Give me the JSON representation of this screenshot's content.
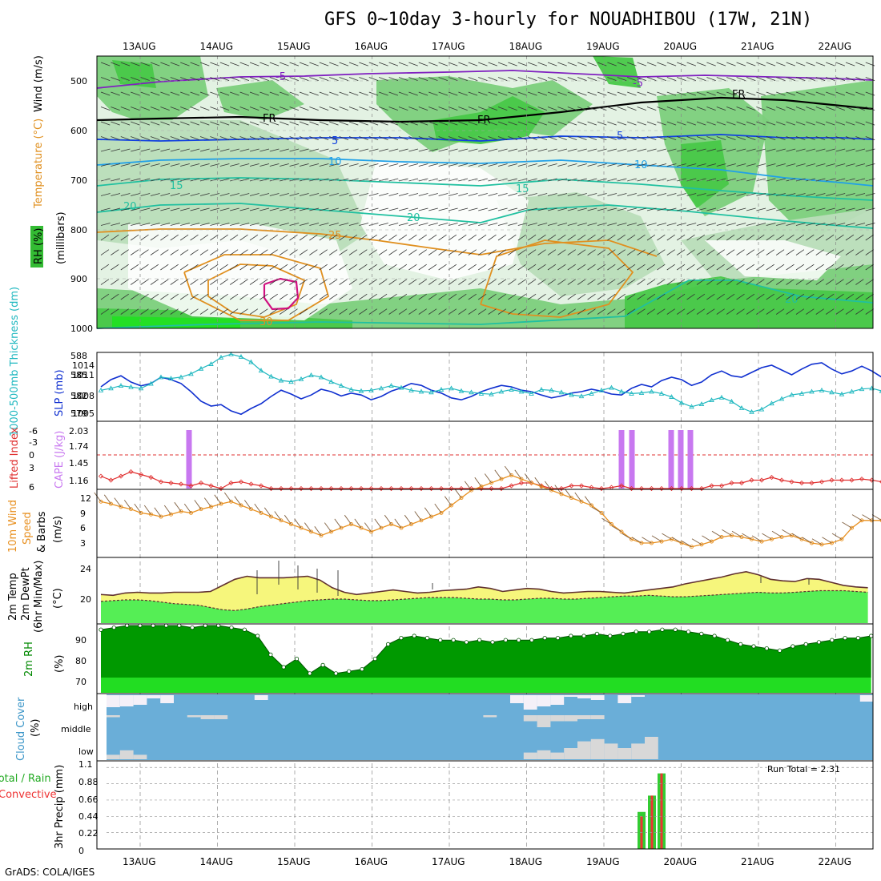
{
  "title": "GFS 0~10day 3-hourly for NOUADHIBOU (17W, 21N)",
  "credit": "GrADS: COLA/IGES",
  "run_total_text": "Run Total = 2.31",
  "dates": [
    "13AUG",
    "14AUG",
    "15AUG",
    "16AUG",
    "17AUG",
    "18AUG",
    "19AUG",
    "20AUG",
    "21AUG",
    "22AUG"
  ],
  "colors": {
    "rh_dark": "#7ccf7c",
    "rh_light": "#e3f2e3",
    "rh_mid": "#b9ddb9",
    "rh_green": "#48c848",
    "rh_bright": "#22e022",
    "temp_purple": "#8020c0",
    "temp_blue": "#1040e0",
    "temp_lightblue": "#20a0e8",
    "temp_teal": "#20c0a0",
    "temp_orange": "#e09020",
    "temp_magenta": "#d01080",
    "slp": "#1030d0",
    "thickness": "#20b8c0",
    "cape": "#c878f0",
    "li": "#e03030",
    "wind_speed": "#e89020",
    "barb": "#806040",
    "temp2m_fill": "#f6f67c",
    "dew_fill": "#55ee55",
    "temp_line": "#603030",
    "rh2m_dark": "#009900",
    "rh2m_light": "#22dd22",
    "cloud_blue": "#6aaed8",
    "cloud_white": "#f4f0f8",
    "cloud_gray": "#d8d8d8",
    "precip_total": "#33cc33",
    "precip_conv": "#ee3333"
  },
  "panels": {
    "upper": {
      "ylabels": [
        "Wind (m/s)",
        "Temperature (°C)",
        "RH (%)",
        "(millibars)"
      ],
      "levels": [
        "500",
        "600",
        "700",
        "800",
        "900",
        "1000"
      ],
      "contour_labels": [
        "-5",
        "-5",
        "FR",
        "FR",
        "FR",
        "5",
        "5",
        "10",
        "10",
        "15",
        "15",
        "20",
        "20",
        "25",
        "30",
        "20"
      ]
    },
    "slp": {
      "ylabel_left": "1000-500mb Thickness (dm)",
      "ylabel_right": "SLP (mb)",
      "left_ticks": [
        "588",
        "585",
        "582",
        "579"
      ],
      "right_ticks": [
        "1014",
        "1011",
        "1008",
        "1005"
      ]
    },
    "cape": {
      "ylabel_left": "Lifted Index",
      "ylabel_right": "CAPE (J/kg)",
      "left_ticks": [
        "-6",
        "-3",
        "0",
        "3",
        "6"
      ],
      "right_ticks": [
        "2.03",
        "1.74",
        "1.45",
        "1.16"
      ]
    },
    "wind": {
      "ylabel": [
        "10m Wind",
        "Speed",
        "& Barbs",
        "(m/s)"
      ],
      "ticks": [
        "12",
        "9",
        "6",
        "3"
      ]
    },
    "temp": {
      "ylabel": [
        "2m Temp",
        "2m DewPt",
        "(6hr Min/Max)",
        "(°C)"
      ],
      "ticks": [
        "24",
        "20"
      ]
    },
    "rh": {
      "ylabel": [
        "2m RH",
        "(%)"
      ],
      "ticks": [
        "90",
        "80",
        "70"
      ]
    },
    "cloud": {
      "ylabel": [
        "Cloud Cover",
        "(%)"
      ],
      "levels": [
        "high",
        "middle",
        "low"
      ]
    },
    "precip": {
      "ylabel": [
        "Total / Rain",
        "Convective",
        "3hr Precip (mm)"
      ],
      "ticks": [
        "1.1",
        "0.88",
        "0.66",
        "0.44",
        "0.22",
        "0"
      ]
    }
  },
  "chart_data": [
    {
      "type": "line",
      "title": "SLP (mb)",
      "x": "3-hourly 12AUG18Z to 22AUG06Z",
      "series": [
        {
          "name": "SLP (mb)",
          "values": [
            1010.5,
            1012.0,
            1012.8,
            1011.5,
            1010.7,
            1011.2,
            1012.5,
            1012.0,
            1011.2,
            1009.5,
            1007.5,
            1006.5,
            1006.8,
            1005.5,
            1004.8,
            1006.0,
            1007.0,
            1008.5,
            1009.8,
            1009.0,
            1008.0,
            1008.8,
            1010.0,
            1009.5,
            1008.6,
            1009.2,
            1008.8,
            1007.8,
            1008.5,
            1009.6,
            1010.3,
            1011.2,
            1010.8,
            1009.8,
            1009.2,
            1008.2,
            1007.8,
            1008.5,
            1009.5,
            1010.2,
            1010.8,
            1010.5,
            1009.8,
            1009.5,
            1008.8,
            1008.2,
            1008.6,
            1009.2,
            1009.5,
            1010.0,
            1009.6,
            1009.0,
            1008.8,
            1010.2,
            1011.0,
            1010.5,
            1011.8,
            1012.5,
            1012.0,
            1010.8,
            1011.5,
            1013.0,
            1013.8,
            1012.8,
            1012.5,
            1013.5,
            1014.5,
            1015.0,
            1014.0,
            1013.0,
            1014.2,
            1015.2,
            1015.5,
            1014.2,
            1013.2,
            1013.8,
            1014.8,
            1013.8,
            1012.5
          ]
        },
        {
          "name": "1000-500mb Thickness (dm)",
          "values": [
            582.5,
            582.8,
            583.2,
            583.0,
            582.8,
            583.5,
            584.5,
            584.3,
            584.5,
            585.0,
            585.8,
            586.5,
            587.5,
            588.0,
            587.6,
            586.8,
            585.5,
            584.6,
            584.0,
            583.8,
            584.2,
            584.8,
            584.5,
            583.8,
            583.2,
            582.6,
            582.4,
            582.5,
            582.8,
            583.2,
            582.9,
            582.5,
            582.3,
            582.2,
            582.6,
            582.8,
            582.4,
            582.2,
            582.0,
            581.9,
            582.3,
            582.6,
            582.3,
            582.0,
            582.6,
            582.5,
            582.2,
            581.8,
            581.6,
            582.0,
            582.5,
            582.9,
            582.3,
            582.0,
            582.1,
            582.3,
            582.0,
            581.5,
            580.6,
            580.0,
            580.4,
            581.0,
            581.4,
            580.8,
            579.8,
            579.2,
            579.6,
            580.5,
            581.2,
            581.8,
            582.0,
            582.3,
            582.5,
            582.2,
            581.9,
            582.3,
            582.7,
            582.8,
            582.4
          ]
        }
      ]
    },
    {
      "type": "bar",
      "title": "CAPE (J/kg)",
      "x_dates": [
        "13AUG15Z",
        "19AUG03Z",
        "19AUG06Z",
        "19AUG18Z",
        "19AUG21Z",
        "20AUG00Z"
      ],
      "values": [
        2.03,
        2.03,
        2.03,
        2.03,
        2.03,
        2.03
      ]
    },
    {
      "type": "line",
      "title": "Lifted Index",
      "series": [
        {
          "name": "Lifted Index",
          "values": [
            3.8,
            4.5,
            3.8,
            3.0,
            3.5,
            4.0,
            4.8,
            5.0,
            5.2,
            5.5,
            5.0,
            5.5,
            6.0,
            5.0,
            4.8,
            5.2,
            5.5,
            6.0,
            6.0,
            6.5,
            6.5,
            6.8,
            7.0,
            7.0,
            7.5,
            7.5,
            7.5,
            7.5,
            7.8,
            7.5,
            7.0,
            6.5,
            6.0,
            6.5,
            7.0,
            7.2,
            7.5,
            7.5,
            7.0,
            6.5,
            6.0,
            5.5,
            5.0,
            5.0,
            5.5,
            6.0,
            6.0,
            5.5,
            5.5,
            5.8,
            6.0,
            5.8,
            5.5,
            6.0,
            6.0,
            6.2,
            6.5,
            6.5,
            7.0,
            6.5,
            6.0,
            5.5,
            5.5,
            5.0,
            5.0,
            4.5,
            4.5,
            4.0,
            4.5,
            4.8,
            5.0,
            5.0,
            4.8,
            4.5,
            4.5,
            4.5,
            4.3,
            4.5,
            4.8
          ]
        }
      ]
    },
    {
      "type": "line",
      "title": "10m Wind Speed (m/s)",
      "series": [
        {
          "name": "10m Wind Speed",
          "values": [
            8.5,
            8.2,
            7.8,
            7.5,
            7.0,
            6.8,
            6.5,
            6.8,
            7.2,
            7.0,
            7.5,
            7.8,
            8.2,
            8.5,
            8.0,
            7.5,
            7.0,
            6.5,
            6.0,
            5.5,
            5.0,
            4.5,
            4.0,
            4.5,
            5.0,
            5.5,
            5.0,
            4.5,
            5.0,
            5.5,
            5.0,
            5.5,
            6.0,
            6.5,
            7.0,
            8.0,
            9.0,
            10.0,
            10.5,
            11.0,
            11.5,
            12.0,
            11.5,
            11.0,
            10.5,
            10.0,
            9.5,
            9.0,
            8.5,
            8.0,
            7.0,
            5.5,
            4.5,
            3.5,
            3.0,
            3.0,
            3.2,
            3.5,
            3.0,
            2.5,
            2.8,
            3.2,
            3.8,
            4.0,
            3.8,
            3.5,
            3.2,
            3.5,
            3.8,
            4.0,
            3.5,
            3.0,
            2.8,
            3.0,
            3.5,
            5.0,
            6.0,
            6.0,
            6.0
          ]
        }
      ]
    },
    {
      "type": "area",
      "title": "2m Temp / DewPt (°C)",
      "series": [
        {
          "name": "2m Temp",
          "values": [
            20.6,
            20.5,
            20.8,
            20.9,
            20.8,
            20.8,
            20.9,
            20.9,
            20.9,
            21.0,
            21.8,
            22.6,
            23.0,
            22.8,
            22.8,
            22.8,
            22.9,
            23.0,
            22.5,
            21.5,
            20.9,
            20.6,
            20.8,
            21.0,
            21.2,
            21.0,
            20.8,
            20.9,
            21.1,
            21.2,
            21.3,
            21.6,
            21.4,
            21.0,
            21.2,
            21.4,
            21.3,
            21.0,
            20.8,
            20.9,
            21.0,
            21.0,
            20.9,
            20.8,
            21.0,
            21.2,
            21.4,
            21.6,
            22.0,
            22.3,
            22.6,
            22.9,
            23.3,
            23.6,
            23.2,
            22.6,
            22.4,
            22.3,
            22.7,
            22.6,
            22.2,
            21.8,
            21.6,
            21.5
          ]
        },
        {
          "name": "2m DewPt",
          "values": [
            19.7,
            19.8,
            19.9,
            19.9,
            19.8,
            19.6,
            19.4,
            19.3,
            19.2,
            18.9,
            18.6,
            18.5,
            18.7,
            19.0,
            19.2,
            19.4,
            19.6,
            19.8,
            19.9,
            20.0,
            20.0,
            19.9,
            19.8,
            19.8,
            19.9,
            20.0,
            20.1,
            20.2,
            20.2,
            20.2,
            20.1,
            20.0,
            20.0,
            19.9,
            19.9,
            20.0,
            20.1,
            20.1,
            20.0,
            20.0,
            20.1,
            20.2,
            20.3,
            20.4,
            20.4,
            20.5,
            20.4,
            20.3,
            20.3,
            20.4,
            20.5,
            20.6,
            20.7,
            20.8,
            20.9,
            20.8,
            20.8,
            20.9,
            21.0,
            21.1,
            21.1,
            21.1,
            21.0,
            20.9
          ]
        }
      ]
    },
    {
      "type": "area",
      "title": "2m RH (%)",
      "series": [
        {
          "name": "2m RH",
          "values": [
            93,
            94,
            95,
            95,
            95,
            95,
            95,
            94,
            95,
            95,
            94,
            93,
            90,
            81,
            75,
            79,
            72,
            76,
            72,
            73,
            74,
            79,
            86,
            89,
            90,
            89,
            88,
            88,
            87,
            88,
            87,
            88,
            88,
            88,
            89,
            89,
            90,
            90,
            91,
            90,
            91,
            92,
            92,
            93,
            93,
            92,
            91,
            90,
            88,
            86,
            85,
            84,
            83,
            85,
            86,
            87,
            88,
            89,
            89,
            90
          ]
        }
      ]
    },
    {
      "type": "area",
      "title": "Cloud Cover (%)",
      "series": [
        {
          "name": "high",
          "values": [
            0.75,
            0.7,
            0.6,
            0.2,
            0.5,
            0,
            0,
            0,
            0,
            0,
            0,
            0.3,
            0,
            0,
            0,
            0,
            0,
            0,
            0,
            0,
            0,
            0,
            0,
            0,
            0,
            0,
            0,
            0,
            0,
            0,
            0.5,
            0.9,
            0.7,
            0.6,
            0.1,
            0.2,
            0.3,
            0,
            0.5,
            0.1,
            0,
            0,
            0,
            0,
            0,
            0,
            0,
            0,
            0,
            0,
            0,
            0,
            0,
            0,
            0,
            0,
            0.4
          ]
        },
        {
          "name": "middle",
          "values": [
            0.1,
            0,
            0,
            0,
            0,
            0,
            0.1,
            0.2,
            0.2,
            0,
            0,
            0,
            0,
            0,
            0,
            0,
            0,
            0,
            0,
            0,
            0,
            0,
            0,
            0,
            0,
            0,
            0,
            0,
            0.1,
            0,
            0,
            0.3,
            0.6,
            0.3,
            0.3,
            0.2,
            0.2,
            0,
            0,
            0,
            0,
            0,
            0,
            0,
            0,
            0,
            0,
            0,
            0,
            0,
            0,
            0,
            0,
            0,
            0
          ]
        },
        {
          "name": "low",
          "values": [
            0.2,
            0.4,
            0.2,
            0,
            0,
            0,
            0,
            0,
            0,
            0,
            0,
            0,
            0,
            0,
            0,
            0,
            0,
            0,
            0,
            0,
            0,
            0,
            0,
            0,
            0,
            0,
            0,
            0,
            0,
            0,
            0,
            0.3,
            0.4,
            0.3,
            0.5,
            0.8,
            0.9,
            0.7,
            0.5,
            0.7,
            1.0,
            0,
            0,
            0,
            0,
            0,
            0,
            0,
            0,
            0,
            0,
            0,
            0,
            0,
            0,
            0,
            0
          ]
        }
      ]
    },
    {
      "type": "bar",
      "title": "3hr Precip (mm)",
      "x_dates": [
        "19AUG09Z",
        "19AUG12Z",
        "19AUG15Z"
      ],
      "series": [
        {
          "name": "Total",
          "values": [
            0.5,
            0.72,
            1.02
          ]
        },
        {
          "name": "Convective",
          "values": [
            0.44,
            0.72,
            1.02
          ]
        }
      ]
    }
  ]
}
